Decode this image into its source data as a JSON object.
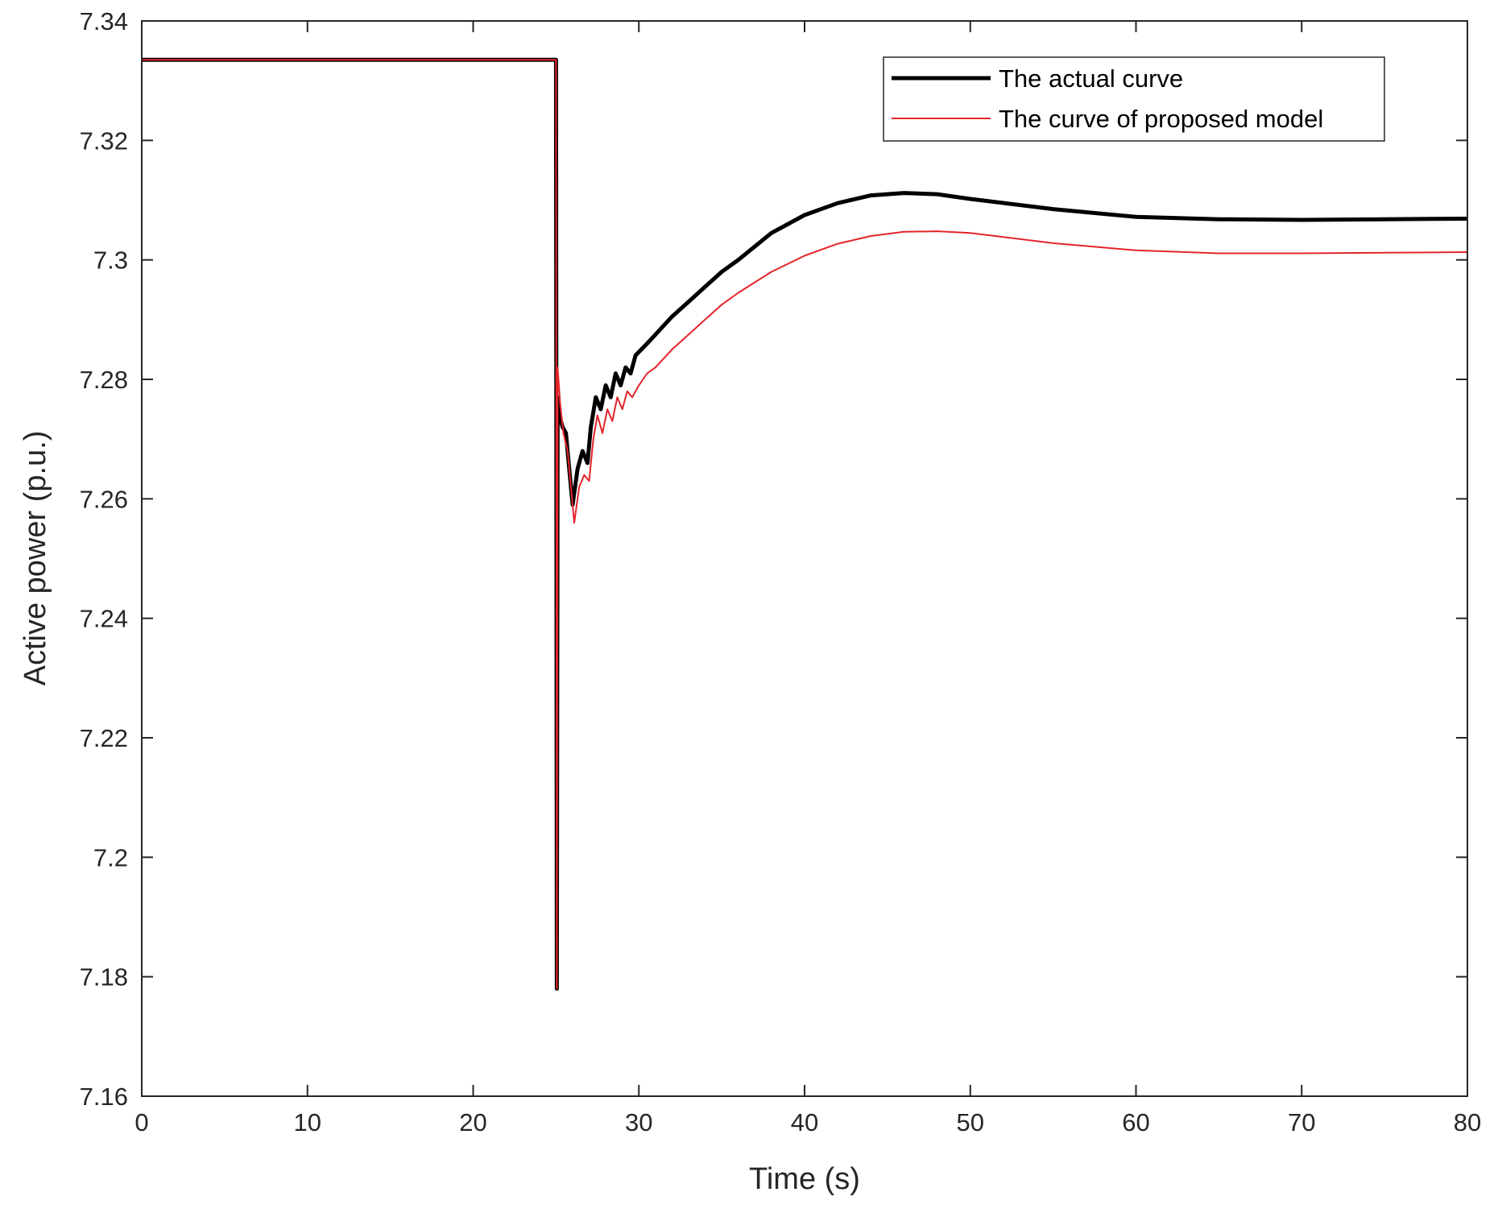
{
  "chart_data": {
    "type": "line",
    "xlabel": "Time (s)",
    "ylabel": "Active power (p.u.)",
    "xlim": [
      0,
      80
    ],
    "ylim": [
      7.16,
      7.34
    ],
    "xticks": [
      0,
      10,
      20,
      30,
      40,
      50,
      60,
      70,
      80
    ],
    "yticks": [
      7.16,
      7.18,
      7.2,
      7.22,
      7.24,
      7.26,
      7.28,
      7.3,
      7.32,
      7.34
    ],
    "xtick_labels": [
      "0",
      "10",
      "20",
      "30",
      "40",
      "50",
      "60",
      "70",
      "80"
    ],
    "ytick_labels": [
      "7.16",
      "7.18",
      "7.2",
      "7.22",
      "7.24",
      "7.26",
      "7.28",
      "7.3",
      "7.32",
      "7.34"
    ],
    "grid": false,
    "legend_position": "top-right",
    "series": [
      {
        "name": "The actual curve",
        "color": "#000000",
        "x": [
          0,
          24.9,
          25.0,
          25.05,
          25.1,
          25.2,
          25.4,
          25.6,
          25.8,
          26.0,
          26.3,
          26.6,
          26.9,
          27.1,
          27.4,
          27.7,
          28.0,
          28.3,
          28.6,
          28.9,
          29.2,
          29.5,
          29.8,
          30.5,
          31.0,
          32.0,
          33.0,
          34.0,
          35.0,
          36.0,
          38.0,
          40.0,
          42.0,
          44.0,
          46.0,
          48.0,
          50.0,
          55.0,
          60.0,
          65.0,
          70.0,
          75.0,
          80.0
        ],
        "y": [
          7.3335,
          7.3335,
          7.3335,
          7.178,
          7.277,
          7.274,
          7.272,
          7.271,
          7.265,
          7.259,
          7.265,
          7.268,
          7.266,
          7.272,
          7.277,
          7.275,
          7.279,
          7.277,
          7.281,
          7.279,
          7.282,
          7.281,
          7.284,
          7.286,
          7.2875,
          7.2905,
          7.293,
          7.2955,
          7.298,
          7.3,
          7.3045,
          7.3075,
          7.3095,
          7.3108,
          7.3112,
          7.311,
          7.3102,
          7.3085,
          7.3072,
          7.3068,
          7.3067,
          7.3068,
          7.3069
        ]
      },
      {
        "name": "The curve of proposed model",
        "color": "#e3242b",
        "x": [
          0,
          24.9,
          25.0,
          25.05,
          25.1,
          25.25,
          25.45,
          25.7,
          25.9,
          26.1,
          26.4,
          26.7,
          27.0,
          27.25,
          27.5,
          27.8,
          28.1,
          28.4,
          28.7,
          29.0,
          29.3,
          29.6,
          30.0,
          30.5,
          31.0,
          32.0,
          33.0,
          34.0,
          35.0,
          36.0,
          38.0,
          40.0,
          42.0,
          44.0,
          46.0,
          48.0,
          50.0,
          55.0,
          60.0,
          65.0,
          70.0,
          75.0,
          80.0
        ],
        "y": [
          7.3335,
          7.3335,
          7.3335,
          7.178,
          7.282,
          7.276,
          7.271,
          7.268,
          7.262,
          7.256,
          7.262,
          7.264,
          7.263,
          7.27,
          7.274,
          7.271,
          7.275,
          7.273,
          7.277,
          7.275,
          7.278,
          7.277,
          7.279,
          7.281,
          7.282,
          7.285,
          7.2875,
          7.29,
          7.2925,
          7.2945,
          7.298,
          7.3007,
          7.3027,
          7.304,
          7.3047,
          7.3048,
          7.3045,
          7.3028,
          7.3016,
          7.3011,
          7.3011,
          7.3012,
          7.3013
        ]
      }
    ]
  }
}
